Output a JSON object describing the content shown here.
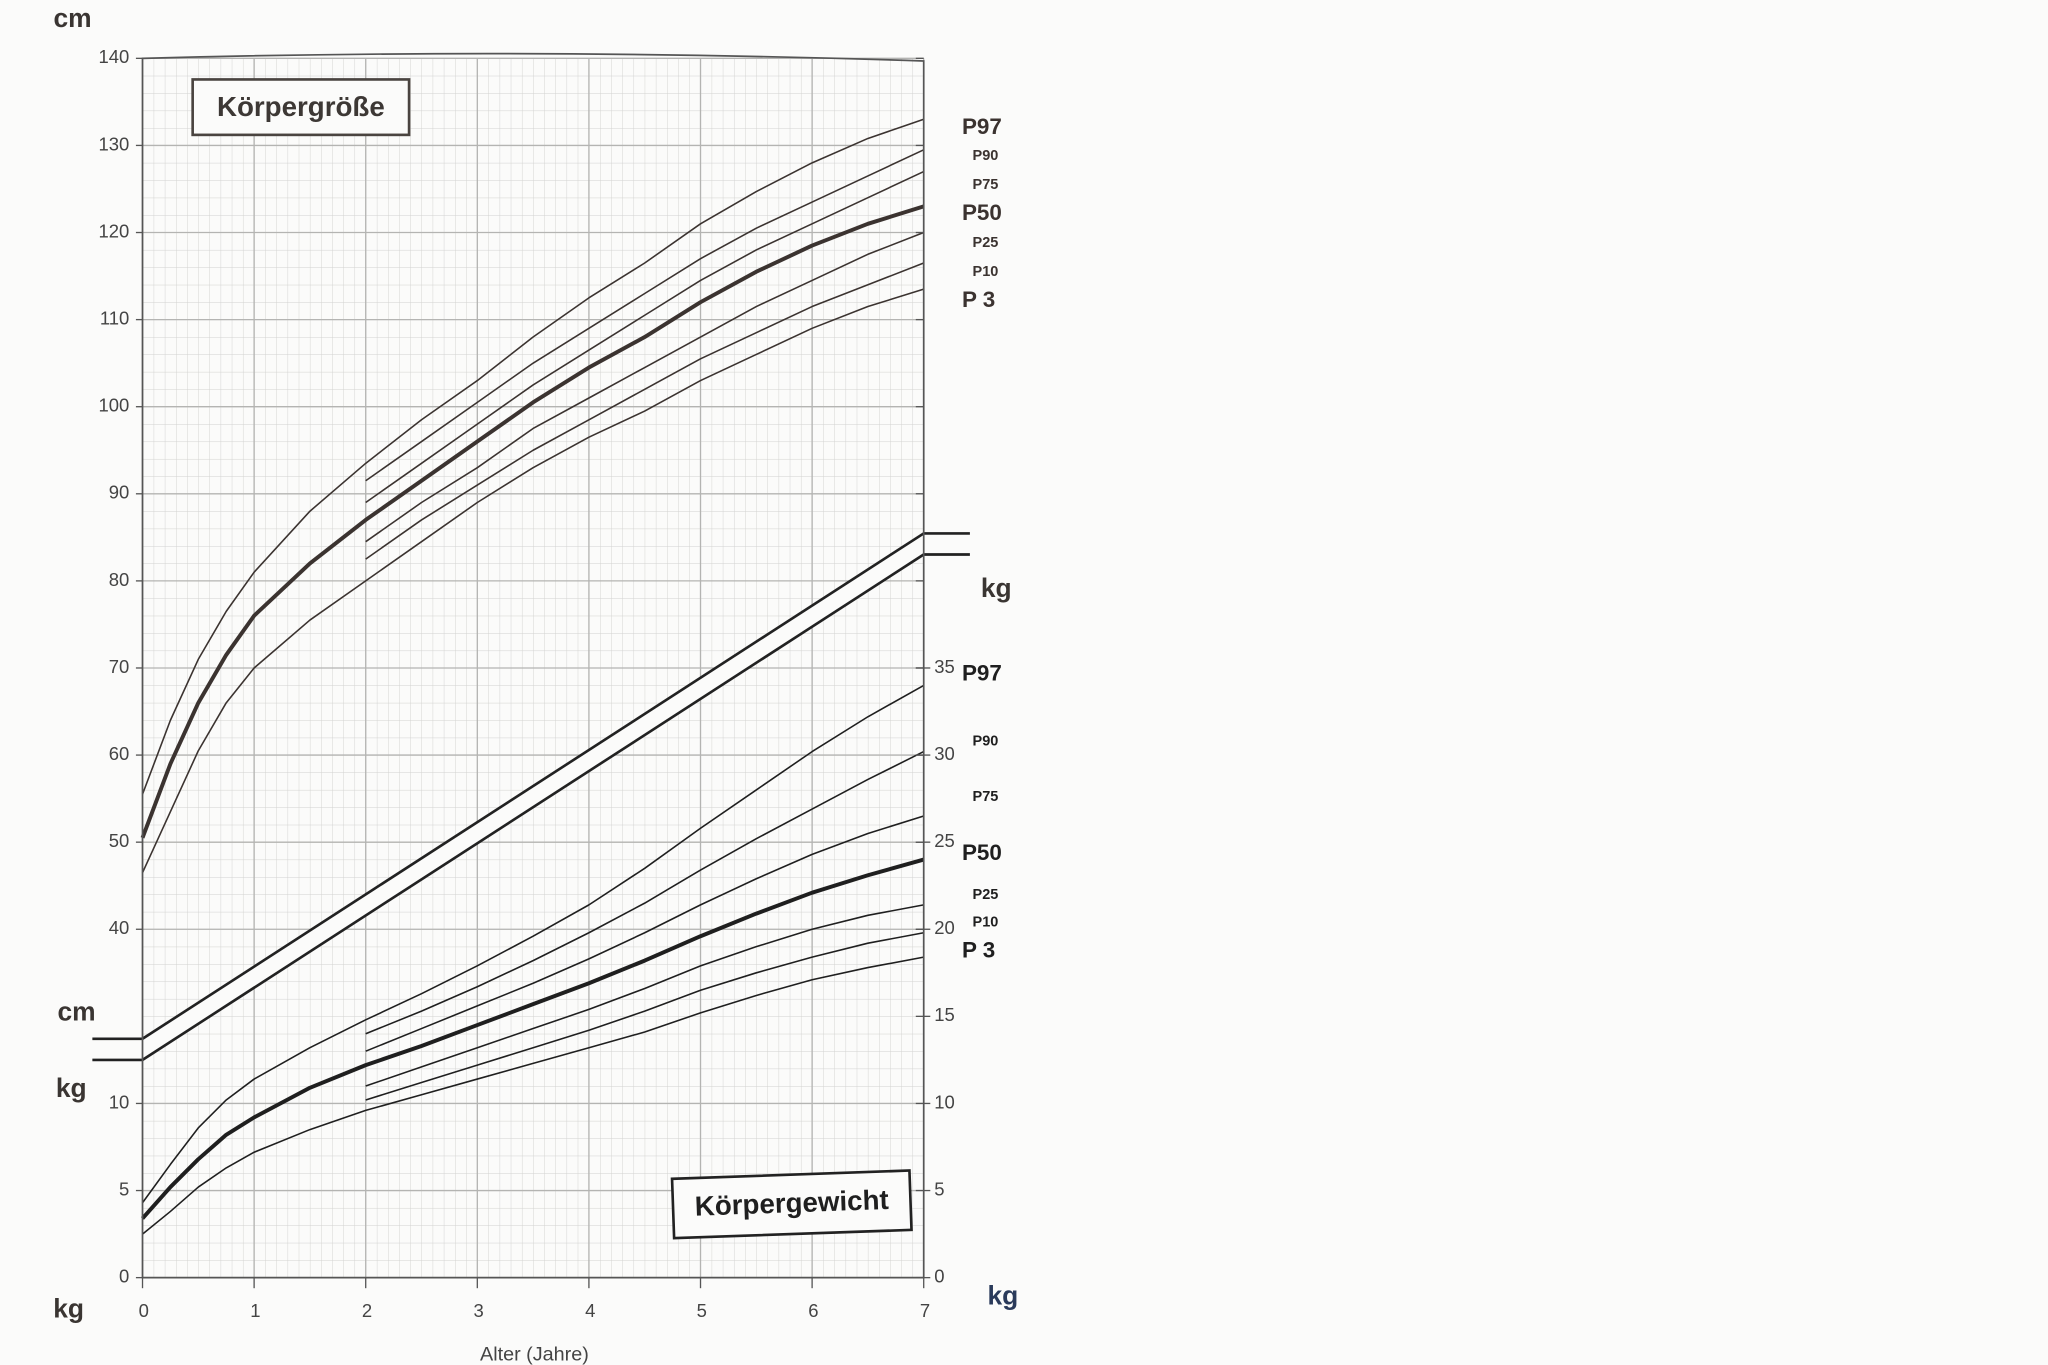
{
  "chart_data": [
    {
      "type": "line",
      "title": "Körpergröße",
      "y_label": "cm",
      "y_break_label": "cm",
      "x": [
        0,
        0.25,
        0.5,
        0.75,
        1,
        1.5,
        2,
        2.5,
        3,
        3.5,
        4,
        4.5,
        5,
        5.5,
        6,
        6.5,
        7
      ],
      "xlim": [
        0,
        7
      ],
      "ylim": [
        0,
        140
      ],
      "yticks": [
        40,
        50,
        60,
        70,
        80,
        90,
        100,
        110,
        120,
        130,
        140
      ],
      "grid": true,
      "series": [
        {
          "name": "P97",
          "color": "#3b3330",
          "width": 1.2,
          "values": [
            55.5,
            64,
            71,
            76.5,
            81,
            88,
            93.5,
            98.5,
            103,
            108,
            112.5,
            116.5,
            121,
            124.7,
            128,
            130.8,
            133
          ]
        },
        {
          "name": "P90",
          "color": "#3b3330",
          "width": 1.2,
          "values": [
            null,
            null,
            null,
            null,
            null,
            null,
            91.5,
            96,
            100.5,
            105,
            109,
            113,
            117,
            120.5,
            123.5,
            126.5,
            129.5
          ]
        },
        {
          "name": "P75",
          "color": "#3b3330",
          "width": 1.2,
          "values": [
            null,
            null,
            null,
            null,
            null,
            null,
            89,
            93.5,
            98,
            102.5,
            106.5,
            110.5,
            114.5,
            118,
            121,
            124,
            127
          ]
        },
        {
          "name": "P50",
          "color": "#3b3330",
          "width": 3,
          "values": [
            50.5,
            59,
            66,
            71.5,
            76,
            82,
            87,
            91.5,
            96,
            100.5,
            104.5,
            108,
            112,
            115.5,
            118.5,
            121,
            123
          ]
        },
        {
          "name": "P25",
          "color": "#3b3330",
          "width": 1.2,
          "values": [
            null,
            null,
            null,
            null,
            null,
            null,
            84.5,
            89,
            93,
            97.5,
            101,
            104.5,
            108,
            111.5,
            114.5,
            117.5,
            120
          ]
        },
        {
          "name": "P10",
          "color": "#3b3330",
          "width": 1.2,
          "values": [
            null,
            null,
            null,
            null,
            null,
            null,
            82.5,
            87,
            91,
            95,
            98.5,
            102,
            105.5,
            108.5,
            111.5,
            114,
            116.5
          ]
        },
        {
          "name": "P 3",
          "color": "#3b3330",
          "width": 1.2,
          "values": [
            46.5,
            53.5,
            60.5,
            66,
            70,
            75.5,
            80,
            84.5,
            89,
            93,
            96.5,
            99.5,
            103,
            106,
            109,
            111.5,
            113.5
          ]
        }
      ]
    },
    {
      "type": "line",
      "title": "Körpergewicht",
      "x_label": "Alter (Jahre)",
      "y_label": "kg",
      "y_break_label": "kg",
      "y2_label": "kg",
      "y2_break_label": "kg",
      "x": [
        0,
        0.25,
        0.5,
        0.75,
        1,
        1.5,
        2,
        2.5,
        3,
        3.5,
        4,
        4.5,
        5,
        5.5,
        6,
        6.5,
        7
      ],
      "xlim": [
        0,
        7
      ],
      "xticks": [
        0,
        1,
        2,
        3,
        4,
        5,
        6,
        7
      ],
      "ylim": [
        0,
        70
      ],
      "yticks": [
        0,
        5,
        10
      ],
      "y2lim": [
        0,
        70
      ],
      "y2ticks": [
        0,
        5,
        10,
        15,
        20,
        25,
        30,
        35
      ],
      "grid": true,
      "series": [
        {
          "name": "P97",
          "color": "#1f1f1f",
          "width": 1.2,
          "values": [
            4.3,
            6.5,
            8.6,
            10.2,
            11.4,
            13.2,
            14.8,
            16.3,
            17.9,
            19.6,
            21.4,
            23.5,
            25.8,
            28,
            30.2,
            32.2,
            34
          ]
        },
        {
          "name": "P90",
          "color": "#1f1f1f",
          "width": 1.2,
          "values": [
            null,
            null,
            null,
            null,
            null,
            null,
            14,
            15.3,
            16.7,
            18.2,
            19.8,
            21.5,
            23.4,
            25.2,
            26.9,
            28.6,
            30.2
          ]
        },
        {
          "name": "P75",
          "color": "#1f1f1f",
          "width": 1.2,
          "values": [
            null,
            null,
            null,
            null,
            null,
            null,
            13,
            14.3,
            15.6,
            16.9,
            18.3,
            19.8,
            21.4,
            22.9,
            24.3,
            25.5,
            26.5
          ]
        },
        {
          "name": "P50",
          "color": "#1f1f1f",
          "width": 3,
          "values": [
            3.4,
            5.2,
            6.8,
            8.2,
            9.2,
            10.9,
            12.2,
            13.3,
            14.5,
            15.7,
            16.9,
            18.2,
            19.6,
            20.9,
            22.1,
            23.1,
            24
          ]
        },
        {
          "name": "P25",
          "color": "#1f1f1f",
          "width": 1.2,
          "values": [
            null,
            null,
            null,
            null,
            null,
            null,
            11,
            12.1,
            13.2,
            14.3,
            15.4,
            16.6,
            17.9,
            19,
            20,
            20.8,
            21.4
          ]
        },
        {
          "name": "P10",
          "color": "#1f1f1f",
          "width": 1.2,
          "values": [
            null,
            null,
            null,
            null,
            null,
            null,
            10.2,
            11.2,
            12.2,
            13.2,
            14.2,
            15.3,
            16.5,
            17.5,
            18.4,
            19.2,
            19.8
          ]
        },
        {
          "name": "P 3",
          "color": "#1f1f1f",
          "width": 1.2,
          "values": [
            2.5,
            3.8,
            5.2,
            6.3,
            7.2,
            8.5,
            9.6,
            10.5,
            11.4,
            12.3,
            13.2,
            14.1,
            15.2,
            16.2,
            17.1,
            17.8,
            18.4
          ]
        }
      ]
    }
  ]
}
